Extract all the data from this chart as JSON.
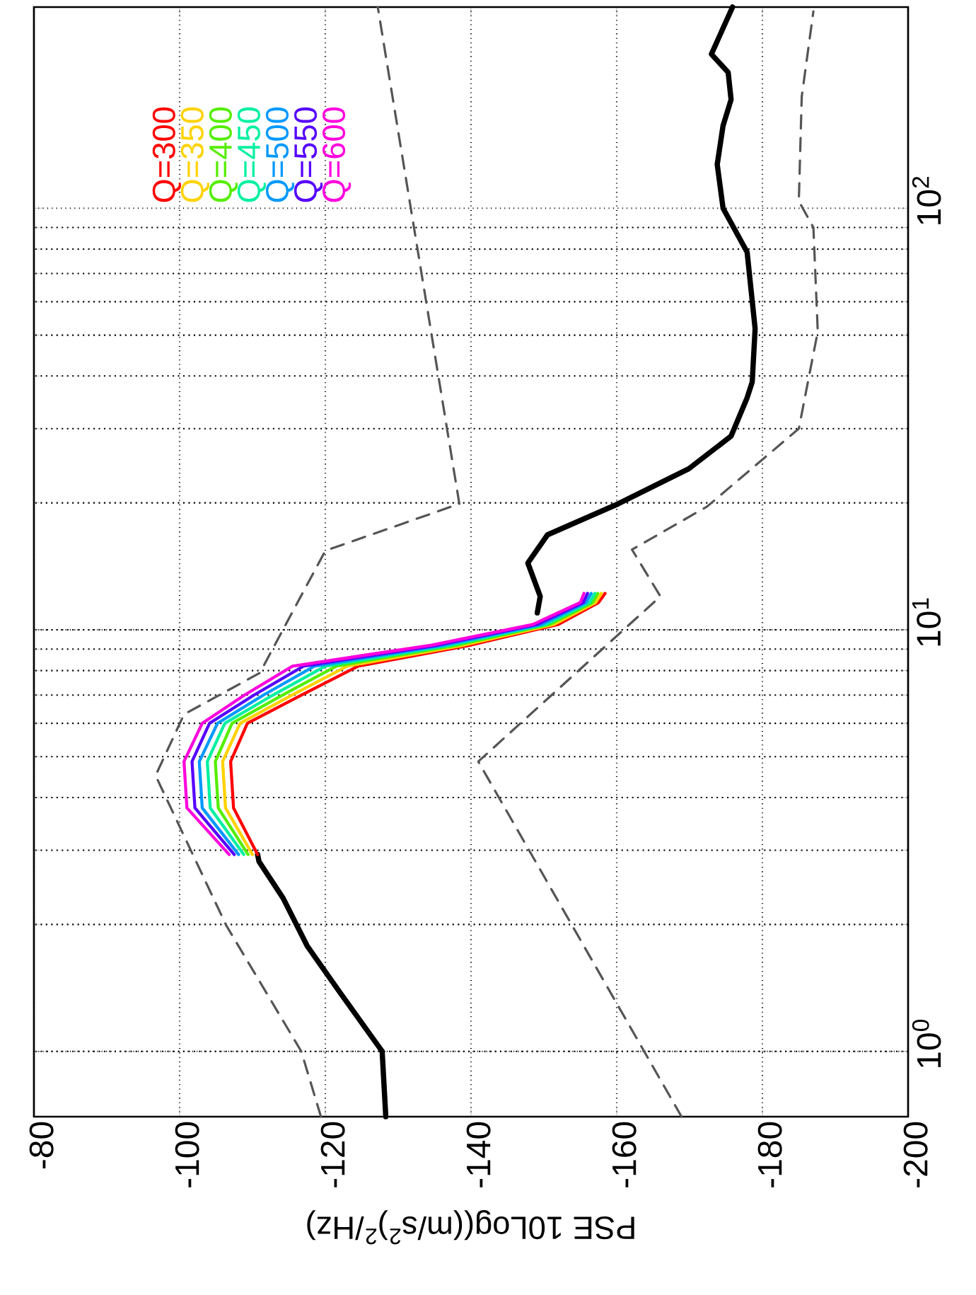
{
  "chart_data": {
    "type": "line",
    "xlabel": "PSE 10Log((m/s$^{2}$)$^{2}$/Hz)",
    "log": "y",
    "xlim": [
      -80,
      -200
    ],
    "ylim": [
      0.7,
      300
    ],
    "xticks": [
      -80,
      -100,
      -120,
      -140,
      -160,
      -180,
      -200
    ],
    "yticks": [
      {
        "value": 1,
        "label": "10$^{0}$"
      },
      {
        "value": 10,
        "label": "10$^{1}$"
      },
      {
        "value": 100,
        "label": "10$^{2}$"
      }
    ],
    "grid": true,
    "legend": "top left",
    "marker": "none",
    "series": [
      {
        "color": "#000000",
        "line_style": "solid",
        "x": [
          -128.3,
          -127.8,
          -122,
          -117.5,
          -114.2,
          -110.9,
          -110.7
        ],
        "values": [
          0.7,
          1.0,
          1.38,
          1.78,
          2.31,
          2.82,
          2.93
        ]
      },
      {
        "color": "#000000",
        "line_style": "solid",
        "x": [
          -149.1,
          -149.5,
          -147.8,
          -150.5,
          -160.2,
          -169.9,
          -175.7,
          -177.9,
          -178.6,
          -179.0,
          -177.9,
          -174.6,
          -173.8,
          -174.6,
          -175.7,
          -175.3,
          -173.0,
          -175.9
        ],
        "values": [
          10.97,
          12.0,
          14.4,
          16.8,
          19.9,
          24.1,
          28.8,
          35.5,
          38.7,
          51.8,
          78.7,
          100,
          127,
          157,
          181,
          210,
          232,
          300
        ]
      },
      {
        "color": "#555555",
        "line_style": "dashed",
        "x": [
          -119.4,
          -116.7,
          -106.4,
          -96.7,
          -100.6,
          -111,
          -120,
          -138.4,
          -127.2
        ],
        "values": [
          0.7,
          1.0,
          1.99,
          4.51,
          6.3,
          7.9,
          15.4,
          19.9,
          300
        ]
      },
      {
        "color": "#555555",
        "line_style": "dashed",
        "x": [
          -168.9,
          -141,
          -166,
          -162.1,
          -172.4,
          -185,
          -187.6,
          -187,
          -185,
          -185.4,
          -187
        ],
        "values": [
          0.7,
          4.87,
          12.0,
          15.5,
          19.6,
          30,
          51,
          90,
          104,
          184,
          293
        ]
      },
      {
        "name": "Q=300",
        "color": "#ff0000",
        "line_style": "solid",
        "x": [
          -110.7,
          -107.4,
          -107.0,
          -109.3,
          -116.7,
          -124.5,
          -140.0,
          -152.0,
          -157.5,
          -158.4
        ],
        "values": [
          2.93,
          3.78,
          4.87,
          6.0,
          7.0,
          8.2,
          9.2,
          10.3,
          11.6,
          12.2
        ]
      },
      {
        "name": "Q=350",
        "color": "#ffd200",
        "line_style": "solid",
        "x": [
          -110.0,
          -106.3,
          -105.9,
          -108.3,
          -115.4,
          -123.0,
          -139.1,
          -151.4,
          -157.1,
          -157.9
        ],
        "values": [
          2.93,
          3.78,
          4.87,
          6.0,
          7.0,
          8.2,
          9.2,
          10.3,
          11.6,
          12.2
        ]
      },
      {
        "name": "Q=400",
        "color": "#55ee00",
        "line_style": "solid",
        "x": [
          -109.4,
          -105.3,
          -104.9,
          -107.2,
          -114.1,
          -121.5,
          -138.2,
          -150.8,
          -156.7,
          -157.4
        ],
        "values": [
          2.93,
          3.78,
          4.87,
          6.0,
          7.0,
          8.2,
          9.2,
          10.3,
          11.6,
          12.2
        ]
      },
      {
        "name": "Q=450",
        "color": "#00f0a0",
        "line_style": "solid",
        "x": [
          -108.8,
          -104.2,
          -103.8,
          -106.2,
          -112.8,
          -120.0,
          -137.3,
          -150.3,
          -156.3,
          -157.0
        ],
        "values": [
          2.93,
          3.78,
          4.87,
          6.0,
          7.0,
          8.2,
          9.2,
          10.3,
          11.6,
          12.2
        ]
      },
      {
        "name": "Q=500",
        "color": "#0099ff",
        "line_style": "solid",
        "x": [
          -108.1,
          -103.1,
          -102.7,
          -105.2,
          -111.5,
          -118.5,
          -136.4,
          -149.7,
          -155.8,
          -156.5
        ],
        "values": [
          2.93,
          3.78,
          4.87,
          6.0,
          7.0,
          8.2,
          9.2,
          10.3,
          11.6,
          12.2
        ]
      },
      {
        "name": "Q=550",
        "color": "#5500ff",
        "line_style": "solid",
        "x": [
          -107.5,
          -102.1,
          -101.7,
          -104.1,
          -110.2,
          -117.0,
          -135.5,
          -149.1,
          -155.4,
          -156.0
        ],
        "values": [
          2.93,
          3.78,
          4.87,
          6.0,
          7.0,
          8.2,
          9.2,
          10.3,
          11.6,
          12.2
        ]
      },
      {
        "name": "Q=600",
        "color": "#ff00dd",
        "line_style": "solid",
        "x": [
          -106.8,
          -101.0,
          -100.6,
          -103.1,
          -108.9,
          -115.5,
          -134.6,
          -148.5,
          -155.0,
          -155.5
        ],
        "values": [
          2.93,
          3.78,
          4.87,
          6.0,
          7.0,
          8.2,
          9.2,
          10.3,
          11.6,
          12.2
        ]
      }
    ]
  }
}
